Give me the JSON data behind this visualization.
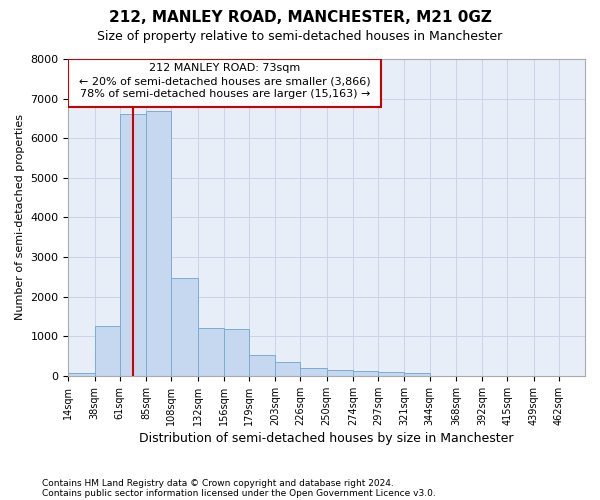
{
  "title_line1": "212, MANLEY ROAD, MANCHESTER, M21 0GZ",
  "title_line2": "Size of property relative to semi-detached houses in Manchester",
  "xlabel": "Distribution of semi-detached houses by size in Manchester",
  "ylabel": "Number of semi-detached properties",
  "footnote1": "Contains HM Land Registry data © Crown copyright and database right 2024.",
  "footnote2": "Contains public sector information licensed under the Open Government Licence v3.0.",
  "annotation_title": "212 MANLEY ROAD: 73sqm",
  "annotation_line1": "← 20% of semi-detached houses are smaller (3,866)",
  "annotation_line2": "78% of semi-detached houses are larger (15,163) →",
  "property_size": 73,
  "bar_color": "#c5d8f0",
  "bar_edge_color": "#7aadd4",
  "vline_color": "#cc0000",
  "annotation_box_edgecolor": "#cc0000",
  "annotation_box_facecolor": "#ffffff",
  "grid_color": "#c8d4e8",
  "background_color": "#e8eef8",
  "bin_edges": [
    14,
    38,
    61,
    85,
    108,
    132,
    156,
    179,
    203,
    226,
    250,
    274,
    297,
    321,
    344,
    368,
    392,
    415,
    439,
    462,
    486
  ],
  "bar_heights": [
    75,
    1250,
    6600,
    6700,
    2480,
    1200,
    1180,
    530,
    350,
    200,
    150,
    120,
    100,
    65,
    0,
    0,
    0,
    0,
    0,
    0
  ],
  "ylim": [
    0,
    8000
  ],
  "yticks": [
    0,
    1000,
    2000,
    3000,
    4000,
    5000,
    6000,
    7000,
    8000
  ]
}
